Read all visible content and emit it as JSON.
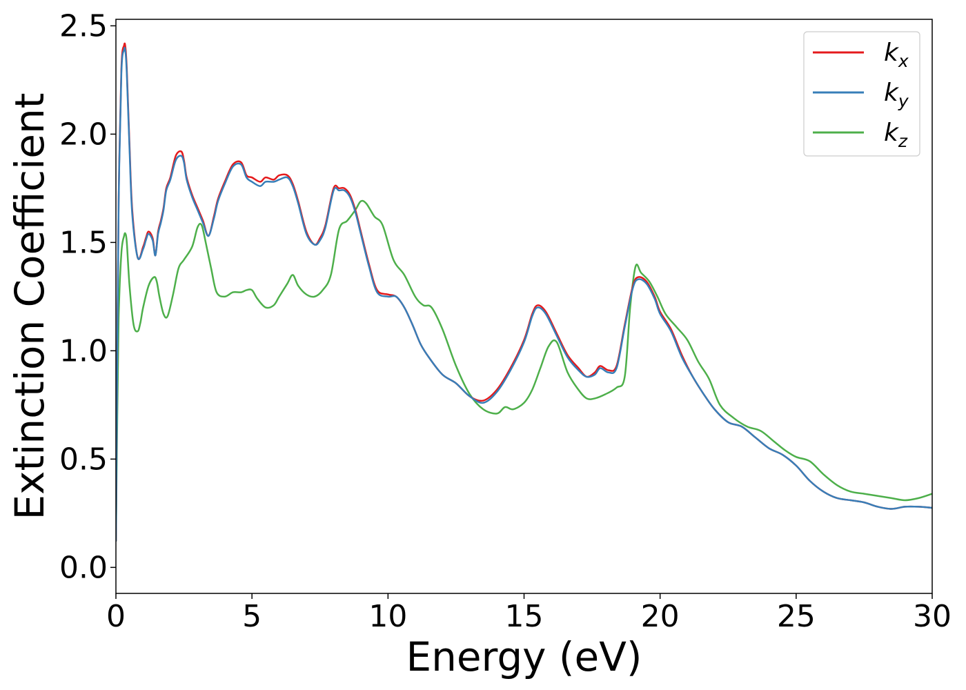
{
  "chart_data": {
    "type": "line",
    "xlabel": "Energy (eV)",
    "ylabel": "Extinction Coefficient",
    "xlim": [
      0,
      30
    ],
    "ylim": [
      -0.12,
      2.53
    ],
    "xticks": [
      0,
      5,
      10,
      15,
      20,
      25,
      30
    ],
    "yticks": [
      0.0,
      0.5,
      1.0,
      1.5,
      2.0,
      2.5
    ],
    "xtick_labels": [
      "0",
      "5",
      "10",
      "15",
      "20",
      "25",
      "30"
    ],
    "ytick_labels": [
      "0.0",
      "0.5",
      "1.0",
      "1.5",
      "2.0",
      "2.5"
    ],
    "grid": false,
    "legend_position": "top-right",
    "series": [
      {
        "name": "k_x",
        "label_base": "k",
        "label_sub": "x",
        "color": "#e41a1c",
        "x": [
          0,
          0.05,
          0.1,
          0.2,
          0.3,
          0.35,
          0.4,
          0.5,
          0.6,
          0.8,
          1.0,
          1.1,
          1.2,
          1.35,
          1.45,
          1.55,
          1.65,
          1.75,
          1.85,
          2.0,
          2.2,
          2.4,
          2.5,
          2.6,
          2.8,
          3.0,
          3.2,
          3.4,
          3.6,
          3.75,
          4.0,
          4.3,
          4.6,
          4.8,
          5.0,
          5.3,
          5.5,
          5.8,
          6.0,
          6.3,
          6.5,
          6.7,
          7.0,
          7.3,
          7.5,
          7.7,
          8.0,
          8.2,
          8.4,
          8.6,
          8.8,
          9.0,
          9.3,
          9.6,
          10.0,
          10.3,
          10.6,
          10.9,
          11.2,
          11.5,
          12.0,
          12.5,
          13.0,
          13.5,
          14.0,
          14.5,
          15.0,
          15.3,
          15.5,
          15.8,
          16.2,
          16.6,
          17.0,
          17.3,
          17.6,
          17.8,
          18.1,
          18.4,
          18.7,
          19.0,
          19.2,
          19.5,
          19.8,
          20.0,
          20.4,
          20.8,
          21.2,
          21.6,
          22.0,
          22.5,
          23.0,
          23.5,
          24.0,
          24.5,
          25.0,
          25.5,
          26.0,
          26.5,
          27.0,
          27.5,
          28.0,
          28.5,
          29.0,
          29.5,
          30.0
        ],
        "y": [
          0.12,
          1.0,
          1.7,
          2.3,
          2.41,
          2.4,
          2.3,
          1.95,
          1.65,
          1.43,
          1.48,
          1.52,
          1.55,
          1.52,
          1.44,
          1.55,
          1.6,
          1.66,
          1.75,
          1.8,
          1.9,
          1.92,
          1.88,
          1.8,
          1.72,
          1.66,
          1.6,
          1.53,
          1.62,
          1.7,
          1.78,
          1.86,
          1.87,
          1.81,
          1.8,
          1.78,
          1.8,
          1.79,
          1.81,
          1.81,
          1.77,
          1.69,
          1.55,
          1.49,
          1.52,
          1.58,
          1.75,
          1.75,
          1.75,
          1.72,
          1.65,
          1.55,
          1.4,
          1.28,
          1.26,
          1.25,
          1.2,
          1.12,
          1.03,
          0.97,
          0.89,
          0.85,
          0.79,
          0.77,
          0.82,
          0.92,
          1.05,
          1.17,
          1.21,
          1.18,
          1.08,
          0.98,
          0.92,
          0.88,
          0.9,
          0.93,
          0.91,
          0.93,
          1.12,
          1.3,
          1.34,
          1.32,
          1.25,
          1.18,
          1.1,
          0.98,
          0.88,
          0.8,
          0.73,
          0.67,
          0.65,
          0.6,
          0.55,
          0.52,
          0.47,
          0.4,
          0.35,
          0.32,
          0.31,
          0.3,
          0.28,
          0.27,
          0.28,
          0.28,
          0.275
        ]
      },
      {
        "name": "k_y",
        "label_base": "k",
        "label_sub": "y",
        "color": "#377eb8",
        "x": [
          0,
          0.05,
          0.1,
          0.2,
          0.3,
          0.35,
          0.4,
          0.5,
          0.6,
          0.8,
          1.0,
          1.1,
          1.2,
          1.35,
          1.45,
          1.55,
          1.65,
          1.75,
          1.85,
          2.0,
          2.2,
          2.4,
          2.5,
          2.6,
          2.8,
          3.0,
          3.2,
          3.4,
          3.6,
          3.75,
          4.0,
          4.3,
          4.6,
          4.8,
          5.0,
          5.3,
          5.5,
          5.8,
          6.0,
          6.3,
          6.5,
          6.7,
          7.0,
          7.3,
          7.5,
          7.7,
          8.0,
          8.2,
          8.4,
          8.6,
          8.8,
          9.0,
          9.3,
          9.6,
          10.0,
          10.3,
          10.6,
          10.9,
          11.2,
          11.5,
          12.0,
          12.5,
          13.0,
          13.5,
          14.0,
          14.5,
          15.0,
          15.3,
          15.5,
          15.8,
          16.2,
          16.6,
          17.0,
          17.3,
          17.6,
          17.8,
          18.1,
          18.4,
          18.7,
          19.0,
          19.2,
          19.5,
          19.8,
          20.0,
          20.4,
          20.8,
          21.2,
          21.6,
          22.0,
          22.5,
          23.0,
          23.5,
          24.0,
          24.5,
          25.0,
          25.5,
          26.0,
          26.5,
          27.0,
          27.5,
          28.0,
          28.5,
          29.0,
          29.5,
          30.0
        ],
        "y": [
          0.12,
          0.98,
          1.68,
          2.28,
          2.39,
          2.38,
          2.28,
          1.93,
          1.63,
          1.43,
          1.47,
          1.51,
          1.54,
          1.51,
          1.44,
          1.54,
          1.59,
          1.65,
          1.74,
          1.79,
          1.88,
          1.9,
          1.87,
          1.79,
          1.71,
          1.65,
          1.59,
          1.53,
          1.61,
          1.69,
          1.77,
          1.85,
          1.86,
          1.8,
          1.78,
          1.76,
          1.78,
          1.78,
          1.79,
          1.8,
          1.76,
          1.68,
          1.54,
          1.49,
          1.51,
          1.57,
          1.74,
          1.74,
          1.74,
          1.71,
          1.64,
          1.54,
          1.39,
          1.27,
          1.25,
          1.25,
          1.2,
          1.12,
          1.03,
          0.97,
          0.89,
          0.85,
          0.79,
          0.76,
          0.81,
          0.91,
          1.04,
          1.16,
          1.2,
          1.17,
          1.07,
          0.97,
          0.91,
          0.88,
          0.89,
          0.92,
          0.9,
          0.92,
          1.11,
          1.29,
          1.33,
          1.31,
          1.24,
          1.17,
          1.09,
          0.97,
          0.88,
          0.8,
          0.73,
          0.67,
          0.65,
          0.6,
          0.55,
          0.52,
          0.47,
          0.4,
          0.35,
          0.32,
          0.31,
          0.3,
          0.28,
          0.27,
          0.28,
          0.28,
          0.275
        ]
      },
      {
        "name": "k_z",
        "label_base": "k",
        "label_sub": "z",
        "color": "#4daf4a",
        "x": [
          0,
          0.05,
          0.1,
          0.2,
          0.3,
          0.35,
          0.4,
          0.5,
          0.65,
          0.8,
          0.9,
          1.0,
          1.2,
          1.4,
          1.5,
          1.6,
          1.75,
          1.9,
          2.1,
          2.3,
          2.5,
          2.8,
          3.0,
          3.15,
          3.3,
          3.5,
          3.7,
          4.0,
          4.3,
          4.6,
          4.8,
          5.0,
          5.2,
          5.5,
          5.8,
          6.0,
          6.3,
          6.5,
          6.7,
          7.0,
          7.3,
          7.6,
          7.9,
          8.2,
          8.5,
          8.8,
          9.0,
          9.2,
          9.5,
          9.8,
          10.2,
          10.6,
          11.0,
          11.3,
          11.6,
          12.0,
          12.5,
          13.0,
          13.5,
          14.0,
          14.3,
          14.6,
          15.0,
          15.3,
          15.6,
          15.9,
          16.2,
          16.6,
          17.0,
          17.3,
          17.6,
          18.0,
          18.4,
          18.7,
          18.9,
          19.1,
          19.3,
          19.6,
          19.9,
          20.2,
          20.6,
          21.0,
          21.4,
          21.8,
          22.2,
          22.7,
          23.2,
          23.7,
          24.2,
          24.6,
          25.0,
          25.5,
          26.0,
          26.5,
          27.0,
          27.5,
          28.0,
          28.5,
          29.0,
          29.5,
          30.0
        ],
        "y": [
          0.12,
          0.7,
          1.15,
          1.45,
          1.53,
          1.54,
          1.5,
          1.3,
          1.12,
          1.09,
          1.13,
          1.2,
          1.3,
          1.34,
          1.32,
          1.25,
          1.17,
          1.16,
          1.26,
          1.38,
          1.42,
          1.48,
          1.57,
          1.58,
          1.5,
          1.38,
          1.27,
          1.25,
          1.27,
          1.27,
          1.28,
          1.28,
          1.24,
          1.2,
          1.21,
          1.25,
          1.31,
          1.35,
          1.3,
          1.26,
          1.25,
          1.28,
          1.35,
          1.56,
          1.6,
          1.65,
          1.69,
          1.68,
          1.62,
          1.58,
          1.42,
          1.35,
          1.25,
          1.21,
          1.2,
          1.1,
          0.93,
          0.8,
          0.73,
          0.71,
          0.74,
          0.73,
          0.76,
          0.82,
          0.92,
          1.02,
          1.04,
          0.9,
          0.82,
          0.78,
          0.78,
          0.8,
          0.83,
          0.88,
          1.2,
          1.39,
          1.36,
          1.32,
          1.25,
          1.17,
          1.11,
          1.05,
          0.95,
          0.87,
          0.75,
          0.69,
          0.65,
          0.63,
          0.58,
          0.54,
          0.51,
          0.49,
          0.43,
          0.38,
          0.35,
          0.34,
          0.33,
          0.32,
          0.31,
          0.32,
          0.34
        ]
      }
    ]
  }
}
